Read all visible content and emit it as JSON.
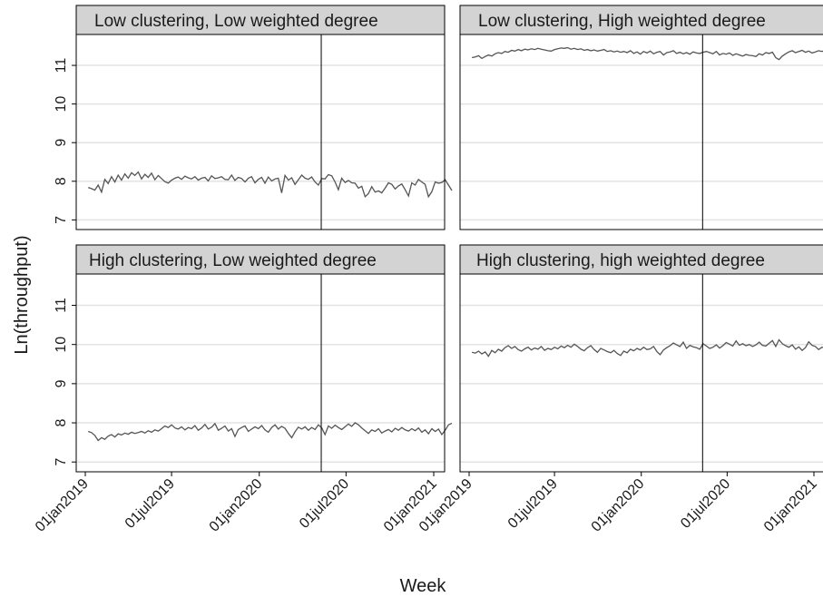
{
  "chart_data": {
    "type": "line",
    "xlabel": "Week",
    "ylabel": "Ln(throughput)",
    "xlim": [
      "2019-01-01",
      "2021-01-01"
    ],
    "ylim": [
      6.75,
      11.8
    ],
    "y_ticks": [
      7,
      8,
      9,
      10,
      11
    ],
    "x_ticks": [
      "2019-01-01",
      "2019-07-01",
      "2020-01-01",
      "2020-07-01",
      "2021-01-01"
    ],
    "x_tick_labels": [
      "01jan2019",
      "01jul2019",
      "01jan2020",
      "01jul2020",
      "01jan2021"
    ],
    "reference_line_x": "2020-05-10",
    "grid": true,
    "line_color": "#555555",
    "panels": [
      {
        "title": "Low clustering, Low weighted degree",
        "start": "2019-01-07",
        "values": [
          7.84,
          7.81,
          7.77,
          7.9,
          7.72,
          8.05,
          7.94,
          8.12,
          7.98,
          8.16,
          8.03,
          8.19,
          8.08,
          8.22,
          8.15,
          8.24,
          8.06,
          8.18,
          8.1,
          8.21,
          8.04,
          8.15,
          8.07,
          7.99,
          7.95,
          8.03,
          8.08,
          8.11,
          8.05,
          8.13,
          8.09,
          8.06,
          8.12,
          8.03,
          8.08,
          8.1,
          8.01,
          8.14,
          8.07,
          8.09,
          8.12,
          8.05,
          8.04,
          8.16,
          8.02,
          8.1,
          8.07,
          7.98,
          8.08,
          8.12,
          7.96,
          8.05,
          8.1,
          7.95,
          8.11,
          8.01,
          8.06,
          8.08,
          7.7,
          8.15,
          8.03,
          8.09,
          7.92,
          8.04,
          8.16,
          8.08,
          8.05,
          8.11,
          7.98,
          7.9,
          8.07,
          8.06,
          8.17,
          8.14,
          7.98,
          7.78,
          8.08,
          7.97,
          8.02,
          7.96,
          7.95,
          7.82,
          7.87,
          7.6,
          7.68,
          7.86,
          7.72,
          7.75,
          7.7,
          7.82,
          7.96,
          7.92,
          7.8,
          7.88,
          7.93,
          7.78,
          7.62,
          7.96,
          7.9,
          8.05,
          7.98,
          7.92,
          7.6,
          7.73,
          7.98,
          7.95,
          7.97,
          8.04,
          7.9,
          7.76
        ]
      },
      {
        "title": "Low clustering, High weighted degree",
        "start": "2019-01-07",
        "values": [
          11.2,
          11.22,
          11.25,
          11.18,
          11.23,
          11.27,
          11.24,
          11.3,
          11.33,
          11.31,
          11.36,
          11.34,
          11.39,
          11.37,
          11.41,
          11.38,
          11.42,
          11.4,
          11.43,
          11.41,
          11.44,
          11.42,
          11.4,
          11.38,
          11.37,
          11.41,
          11.43,
          11.45,
          11.44,
          11.46,
          11.42,
          11.44,
          11.41,
          11.43,
          11.39,
          11.41,
          11.38,
          11.4,
          11.37,
          11.39,
          11.41,
          11.36,
          11.38,
          11.35,
          11.37,
          11.34,
          11.36,
          11.33,
          11.38,
          11.31,
          11.35,
          11.29,
          11.36,
          11.32,
          11.37,
          11.3,
          11.34,
          11.36,
          11.27,
          11.33,
          11.35,
          11.38,
          11.31,
          11.34,
          11.3,
          11.33,
          11.29,
          11.35,
          11.32,
          11.31,
          11.34,
          11.36,
          11.33,
          11.3,
          11.36,
          11.27,
          11.31,
          11.29,
          11.32,
          11.26,
          11.3,
          11.27,
          11.24,
          11.28,
          11.26,
          11.25,
          11.23,
          11.3,
          11.27,
          11.33,
          11.31,
          11.34,
          11.2,
          11.15,
          11.24,
          11.3,
          11.35,
          11.38,
          11.33,
          11.36,
          11.39,
          11.34,
          11.37,
          11.32,
          11.35,
          11.38,
          11.36,
          11.39,
          11.41,
          11.4
        ]
      },
      {
        "title": "High clustering, Low weighted degree",
        "start": "2019-01-07",
        "values": [
          7.78,
          7.75,
          7.68,
          7.55,
          7.62,
          7.58,
          7.66,
          7.7,
          7.64,
          7.72,
          7.69,
          7.74,
          7.71,
          7.76,
          7.73,
          7.75,
          7.78,
          7.74,
          7.8,
          7.76,
          7.82,
          7.79,
          7.85,
          7.92,
          7.88,
          7.95,
          7.87,
          7.84,
          7.9,
          7.82,
          7.88,
          7.85,
          7.93,
          7.81,
          7.87,
          7.96,
          7.84,
          7.89,
          7.98,
          7.81,
          7.86,
          7.92,
          7.79,
          7.85,
          7.65,
          7.83,
          7.88,
          7.92,
          7.78,
          7.84,
          7.9,
          7.85,
          7.93,
          7.82,
          7.76,
          7.88,
          7.95,
          7.84,
          7.91,
          7.86,
          7.73,
          7.62,
          7.77,
          7.89,
          7.84,
          7.9,
          7.81,
          7.88,
          7.83,
          7.95,
          7.87,
          7.7,
          7.92,
          7.86,
          7.94,
          7.88,
          7.83,
          7.9,
          7.97,
          7.91,
          8,
          7.95,
          7.87,
          7.8,
          7.73,
          7.82,
          7.78,
          7.85,
          7.74,
          7.79,
          7.83,
          7.77,
          7.86,
          7.81,
          7.88,
          7.82,
          7.79,
          7.85,
          7.8,
          7.87,
          7.76,
          7.82,
          7.72,
          7.85,
          7.78,
          7.84,
          7.7,
          7.81,
          7.95,
          7.99
        ]
      },
      {
        "title": "High clustering, high weighted degree",
        "start": "2019-01-07",
        "values": [
          9.8,
          9.78,
          9.83,
          9.76,
          9.81,
          9.7,
          9.85,
          9.79,
          9.88,
          9.83,
          9.92,
          9.97,
          9.9,
          9.95,
          9.87,
          9.83,
          9.89,
          9.93,
          9.86,
          9.91,
          9.88,
          9.95,
          9.85,
          9.9,
          9.87,
          9.93,
          9.89,
          9.96,
          9.92,
          9.98,
          9.93,
          10.01,
          9.95,
          9.88,
          9.84,
          9.92,
          9.97,
          9.87,
          9.8,
          9.9,
          9.86,
          9.82,
          9.79,
          9.85,
          9.77,
          9.72,
          9.83,
          9.79,
          9.88,
          9.84,
          9.9,
          9.86,
          9.93,
          9.87,
          9.89,
          9.95,
          9.82,
          9.74,
          9.86,
          9.92,
          9.97,
          10.04,
          9.99,
          9.95,
          10.06,
          9.9,
          9.98,
          9.94,
          9.92,
          9.88,
          10.02,
          9.96,
          9.9,
          9.93,
          9.99,
          9.91,
          9.97,
          10.05,
          10.01,
          9.96,
          10.09,
          9.98,
          10.02,
          9.97,
          10,
          9.95,
          9.99,
          10.06,
          9.98,
          9.96,
          10.03,
          10.1,
          9.95,
          10.12,
          10.02,
          9.97,
          9.93,
          9.99,
          9.88,
          9.94,
          9.85,
          9.92,
          10.07,
          9.98,
          9.95,
          9.87,
          9.93,
          9.91,
          9.97,
          9.98
        ]
      }
    ]
  }
}
